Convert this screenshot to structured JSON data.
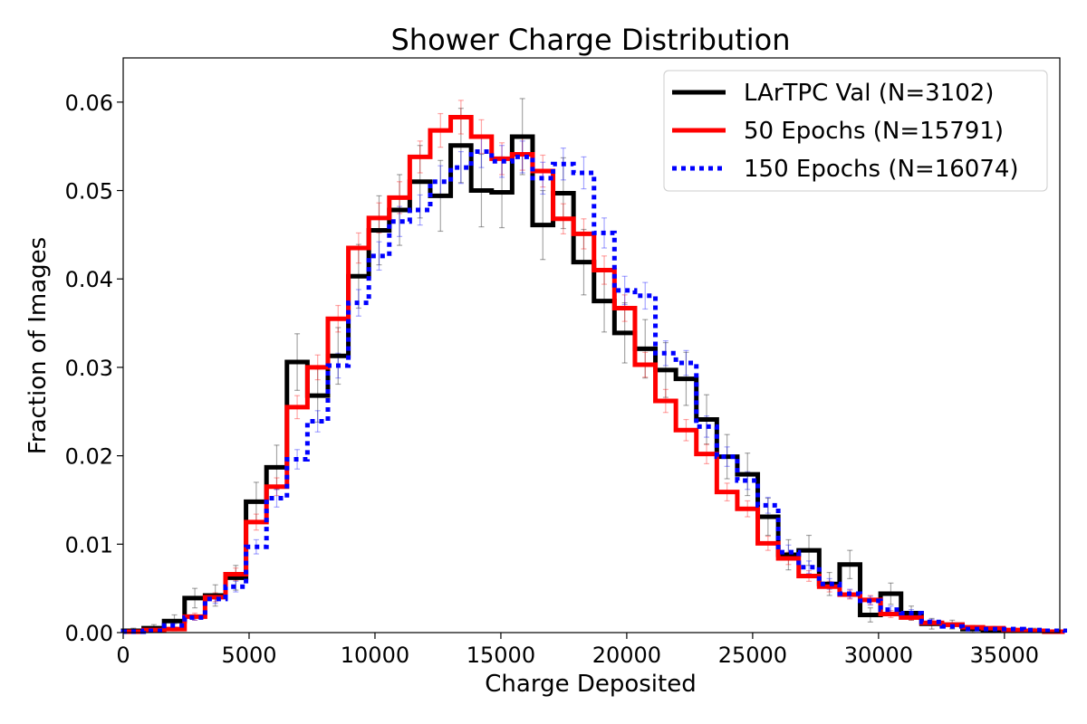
{
  "chart_data": {
    "type": "line",
    "title": "Shower Charge Distribution",
    "xlabel": "Charge Deposited",
    "ylabel": "Fraction of Images",
    "xlim": [
      0,
      37200
    ],
    "ylim": [
      0,
      0.065
    ],
    "xticks": [
      0,
      5000,
      10000,
      15000,
      20000,
      25000,
      30000,
      35000
    ],
    "xtick_labels": [
      "0",
      "5000",
      "10000",
      "15000",
      "20000",
      "25000",
      "30000",
      "35000"
    ],
    "yticks": [
      0,
      0.01,
      0.02,
      0.03,
      0.04,
      0.05,
      0.06
    ],
    "ytick_labels": [
      "0.00",
      "0.01",
      "0.02",
      "0.03",
      "0.04",
      "0.05",
      "0.06"
    ],
    "grid": false,
    "legend_position": "top-right",
    "bin_edges": [
      0,
      813,
      1626,
      2439,
      3252,
      4065,
      4878,
      5691,
      6504,
      7317,
      8130,
      8943,
      9756,
      10569,
      11382,
      12195,
      13008,
      13821,
      14634,
      15447,
      16260,
      17073,
      17886,
      18699,
      19512,
      20325,
      21138,
      21951,
      22764,
      23577,
      24390,
      25203,
      26016,
      26829,
      27642,
      28455,
      29268,
      30081,
      30894,
      31707,
      32520,
      33333,
      34146,
      34959,
      35772,
      36585,
      37398
    ],
    "series": [
      {
        "name": "LArTPC Val (N=3102)",
        "color": "#000000",
        "style": "solid",
        "values": [
          0.0002,
          0.0005,
          0.0013,
          0.0039,
          0.0042,
          0.0062,
          0.0148,
          0.0187,
          0.0306,
          0.0268,
          0.0313,
          0.0403,
          0.0455,
          0.0478,
          0.051,
          0.0494,
          0.0551,
          0.05,
          0.0498,
          0.0561,
          0.0461,
          0.0497,
          0.0419,
          0.0375,
          0.0339,
          0.0321,
          0.0297,
          0.0287,
          0.0241,
          0.0199,
          0.0179,
          0.0131,
          0.0088,
          0.0093,
          0.0055,
          0.0077,
          0.002,
          0.0044,
          0.0022,
          0.001,
          0.0009,
          0.0004,
          0.0003,
          0.0002,
          0.0002,
          0.0001
        ],
        "errors": [
          0.0003,
          0.0004,
          0.0007,
          0.0011,
          0.0012,
          0.0014,
          0.0022,
          0.0025,
          0.0032,
          0.003,
          0.0032,
          0.0036,
          0.0039,
          0.004,
          0.0041,
          0.004,
          0.0042,
          0.0041,
          0.004,
          0.0043,
          0.0039,
          0.004,
          0.0037,
          0.0035,
          0.0034,
          0.0033,
          0.0031,
          0.003,
          0.0028,
          0.0025,
          0.0024,
          0.0021,
          0.0017,
          0.0017,
          0.0013,
          0.0016,
          0.0008,
          0.0012,
          0.0008,
          0.0006,
          0.0005,
          0.0004,
          0.0003,
          0.0003,
          0.0003,
          0.0002
        ]
      },
      {
        "name": "50 Epochs (N=15791)",
        "color": "#ff0000",
        "style": "solid",
        "values": [
          0.0001,
          0.0003,
          0.0004,
          0.0018,
          0.004,
          0.0066,
          0.0125,
          0.0165,
          0.0255,
          0.03,
          0.0355,
          0.0435,
          0.0469,
          0.0492,
          0.0538,
          0.0568,
          0.0583,
          0.0561,
          0.0536,
          0.0541,
          0.0522,
          0.0468,
          0.0451,
          0.041,
          0.0367,
          0.0303,
          0.0262,
          0.0229,
          0.0202,
          0.0159,
          0.014,
          0.0101,
          0.0084,
          0.0064,
          0.0052,
          0.0043,
          0.0037,
          0.0021,
          0.0017,
          0.0011,
          0.0009,
          0.0006,
          0.0005,
          0.0003,
          0.0002,
          0.0001
        ],
        "errors": [
          0.0001,
          0.0002,
          0.0002,
          0.0004,
          0.0005,
          0.0007,
          0.0009,
          0.001,
          0.0013,
          0.0014,
          0.0015,
          0.0017,
          0.0017,
          0.0018,
          0.0018,
          0.0019,
          0.0019,
          0.0019,
          0.0018,
          0.0018,
          0.0018,
          0.0017,
          0.0017,
          0.0016,
          0.0015,
          0.0014,
          0.0013,
          0.0012,
          0.0011,
          0.001,
          0.0009,
          0.0008,
          0.0007,
          0.0006,
          0.0006,
          0.0005,
          0.0005,
          0.0004,
          0.0003,
          0.0003,
          0.0002,
          0.0002,
          0.0002,
          0.0001,
          0.0001,
          0.0001
        ]
      },
      {
        "name": "150 Epochs (N=16074)",
        "color": "#0000ff",
        "style": "dotted",
        "values": [
          0.0001,
          0.0002,
          0.0008,
          0.0017,
          0.0038,
          0.0052,
          0.0097,
          0.0152,
          0.0196,
          0.0239,
          0.0302,
          0.0373,
          0.0426,
          0.0465,
          0.0478,
          0.051,
          0.0526,
          0.0544,
          0.0533,
          0.0538,
          0.0514,
          0.053,
          0.052,
          0.0452,
          0.0387,
          0.0381,
          0.0316,
          0.0305,
          0.0233,
          0.0199,
          0.0172,
          0.0144,
          0.0091,
          0.0074,
          0.0055,
          0.0044,
          0.0036,
          0.0026,
          0.0022,
          0.0012,
          0.0007,
          0.0004,
          0.0004,
          0.0004,
          0.0003,
          0.0002
        ],
        "errors": [
          0.0001,
          0.0001,
          0.0002,
          0.0003,
          0.0005,
          0.0006,
          0.0008,
          0.001,
          0.0011,
          0.0012,
          0.0014,
          0.0015,
          0.0016,
          0.0017,
          0.0017,
          0.0018,
          0.0018,
          0.0018,
          0.0018,
          0.0018,
          0.0018,
          0.0018,
          0.0018,
          0.0017,
          0.0016,
          0.0015,
          0.0014,
          0.0014,
          0.0012,
          0.0011,
          0.001,
          0.0009,
          0.0008,
          0.0007,
          0.0006,
          0.0005,
          0.0005,
          0.0004,
          0.0004,
          0.0003,
          0.0002,
          0.0002,
          0.0002,
          0.0002,
          0.0001,
          0.0001
        ]
      }
    ]
  }
}
